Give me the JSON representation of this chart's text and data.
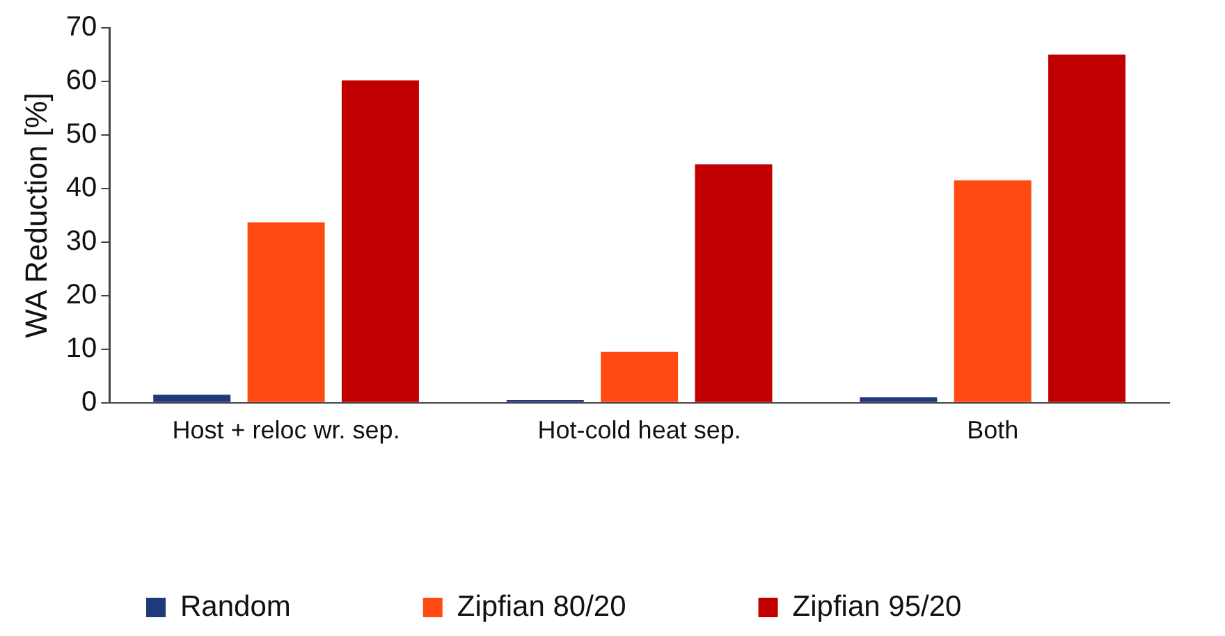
{
  "chart_data": {
    "type": "bar",
    "ylabel": "WA Reduction [%]",
    "categories": [
      "Host + reloc wr. sep.",
      "Hot-cold heat sep.",
      "Both"
    ],
    "series": [
      {
        "name": "Random",
        "color": "#1f3a7a",
        "values": [
          1.5,
          0.5,
          1
        ]
      },
      {
        "name": "Zipfian 80/20",
        "color": "#ff4a12",
        "values": [
          33.7,
          9.5,
          41.5
        ]
      },
      {
        "name": "Zipfian 95/20",
        "color": "#c00000",
        "values": [
          60.2,
          44.5,
          65
        ]
      }
    ],
    "ylim": [
      0,
      70
    ],
    "yticks": [
      0,
      10,
      20,
      30,
      40,
      50,
      60,
      70
    ],
    "grid": false,
    "legend": "bottom"
  }
}
